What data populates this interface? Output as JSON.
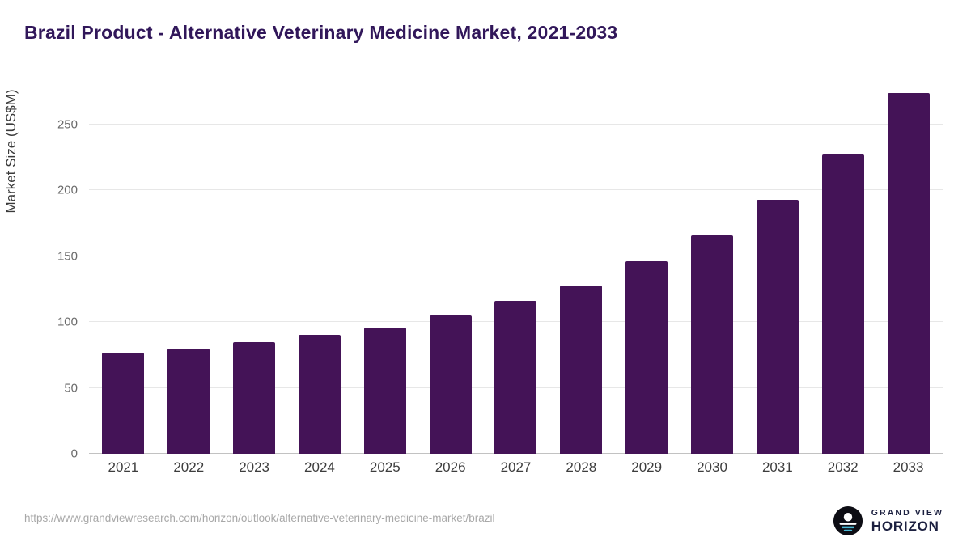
{
  "header": {
    "title": "Brazil Product - Alternative Veterinary Medicine Market, 2021-2033"
  },
  "chart_data": {
    "type": "bar",
    "title": "Brazil Product - Alternative Veterinary Medicine Market, 2021-2033",
    "categories": [
      "2021",
      "2022",
      "2023",
      "2024",
      "2025",
      "2026",
      "2027",
      "2028",
      "2029",
      "2030",
      "2031",
      "2032",
      "2033"
    ],
    "values": [
      77,
      80,
      85,
      90,
      96,
      105,
      116,
      128,
      146,
      166,
      193,
      227,
      274
    ],
    "xlabel": "",
    "ylabel": "Market Size (US$M)",
    "ylim": [
      0,
      283
    ],
    "yticks": [
      0,
      50,
      100,
      150,
      200,
      250
    ],
    "grid": true,
    "legend": false,
    "bar_color": "#441357"
  },
  "footer": {
    "source_url": "https://www.grandviewresearch.com/horizon/outlook/alternative-veterinary-medicine-market/brazil",
    "logo": {
      "line1": "GRAND VIEW",
      "line2": "HORIZON",
      "icon_bg": "#0d0d14",
      "icon_accent": "#49b9d6"
    }
  }
}
